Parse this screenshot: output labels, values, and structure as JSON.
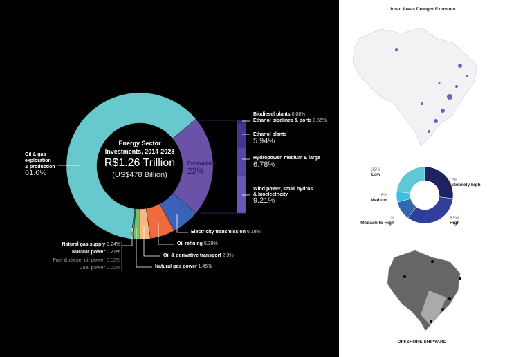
{
  "main": {
    "title_line1": "Energy Sector",
    "title_line2": "Investments, 2014-2023",
    "total_brl": "R$1.26 Trillion",
    "total_usd": "(US$478 Billion)"
  },
  "chart_data": [
    {
      "type": "pie",
      "title": "Energy Sector Investments, 2014-2023",
      "slices": [
        {
          "label": "Renewables",
          "value": 22,
          "display": "22%",
          "color": "#6a52a8"
        },
        {
          "label": "Electricity transmission",
          "value": 6.18,
          "display": "6.18%",
          "color": "#3a62b8"
        },
        {
          "label": "Oil refining",
          "value": 5.39,
          "display": "5.39%",
          "color": "#ef6a3c"
        },
        {
          "label": "Oil & derivative transport",
          "value": 2.3,
          "display": "2.3%",
          "color": "#f7b77f"
        },
        {
          "label": "Natural gas power",
          "value": 1.45,
          "display": "1.45%",
          "color": "#72c26a"
        },
        {
          "label": "Natural gas supply",
          "value": 0.24,
          "display": "0.24%",
          "color": "#2f8f6a"
        },
        {
          "label": "Nuclear power",
          "value": 0.21,
          "display": "0.21%",
          "color": "#e8e04a"
        },
        {
          "label": "Fuel & diesel oil power",
          "value": 0.02,
          "display": "0.02%",
          "color": "#999"
        },
        {
          "label": "Coal power",
          "value": 0.0,
          "display": "0.00%",
          "color": "#555"
        },
        {
          "label": "Oil & gas exploration & production",
          "value": 61.6,
          "display": "61.6%",
          "color": "#67c9cd"
        }
      ],
      "renewables_breakdown": [
        {
          "label": "Biodiesel plants",
          "value": 0.08,
          "display": "0.08%",
          "color": "#2a1f5e"
        },
        {
          "label": "Ethanol pipelines & ports",
          "value": 0.55,
          "display": "0.55%",
          "color": "#3a2a7a"
        },
        {
          "label": "Ethanol plants",
          "value": 5.94,
          "display": "5.94%",
          "color": "#47348f"
        },
        {
          "label": "Hydropower, medium & large",
          "value": 6.78,
          "display": "6.78%",
          "color": "#5a44a6"
        },
        {
          "label": "Wind power, small hydros & bioelectricity",
          "value": 9.21,
          "display": "9.21%",
          "color": "#6a56b4"
        }
      ]
    },
    {
      "type": "pie",
      "title": "Urban Areas Drought Exposure",
      "slices": [
        {
          "label": "Extremely high",
          "value": 27,
          "display": "27%",
          "color": "#1f2260"
        },
        {
          "label": "High",
          "value": 33,
          "display": "33%",
          "color": "#2f3f9a"
        },
        {
          "label": "Medium to High",
          "value": 11,
          "display": "11%",
          "color": "#3566b0"
        },
        {
          "label": "Medium",
          "value": 6,
          "display": "6%",
          "color": "#3fbfe4"
        },
        {
          "label": "Low",
          "value": 23,
          "display": "23%",
          "color": "#5ec8d6"
        }
      ]
    }
  ],
  "labels": {
    "oilgas": "Oil & gas",
    "oilgas2": "exploration",
    "oilgas3": "& production",
    "renew": "Renewables",
    "wind1": "Wind power, small hydros",
    "wind2": "& bioelectricity"
  },
  "right": {
    "map_title": "Urban Areas Drought Exposure",
    "shipyard_title": "OFFSHORE SHIPYARD"
  }
}
